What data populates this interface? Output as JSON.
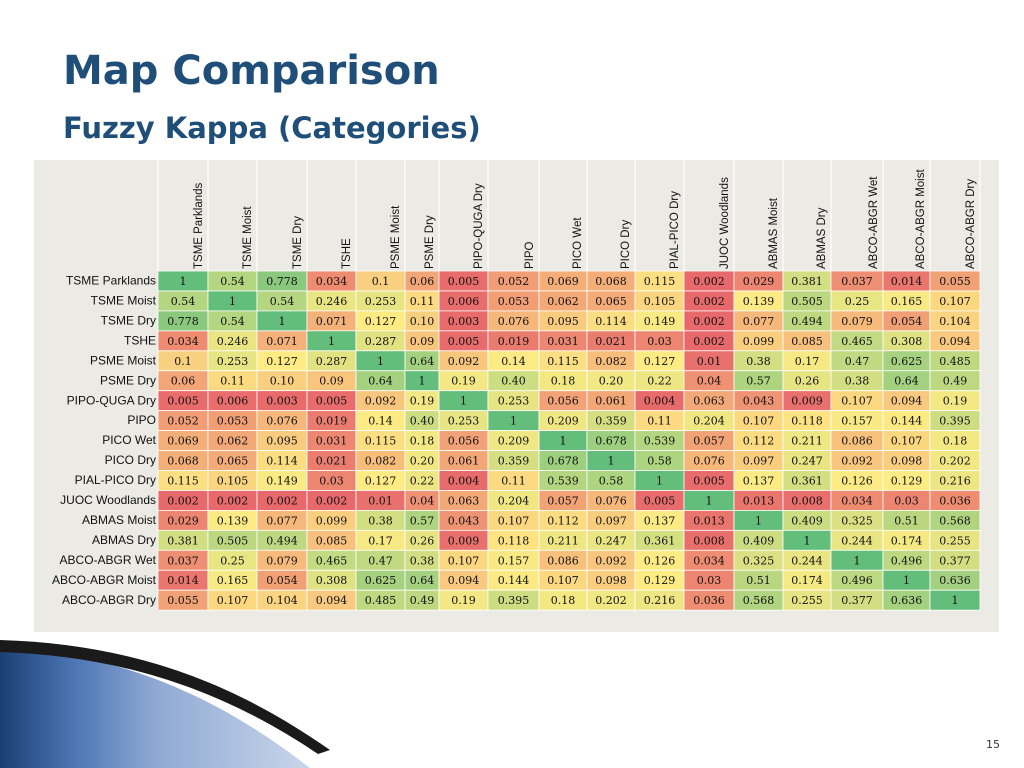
{
  "slide": {
    "title": "Map Comparison",
    "subtitle": "Fuzzy Kappa (Categories)",
    "page_number": "15"
  },
  "colors": {
    "title": "#1F4E79",
    "panel_bg": "#ECEAE4",
    "scale_low": "#E8696B",
    "scale_mid": "#FEEB84",
    "scale_high": "#63BE7B"
  },
  "chart_data": {
    "type": "heatmap",
    "title": "",
    "columns": [
      "TSME Parklands",
      "TSME Moist",
      "TSME Dry",
      "TSHE",
      "PSME Moist",
      "PSME Dry",
      "PIPO-QUGA Dry",
      "PIPO",
      "PICO Wet",
      "PICO Dry",
      "PIAL-PICO Dry",
      "JUOC Woodlands",
      "ABMAS Moist",
      "ABMAS Dry",
      "ABCO-ABGR Wet",
      "ABCO-ABGR Moist",
      "ABCO-ABGR Dry"
    ],
    "rows": [
      "TSME Parklands",
      "TSME Moist",
      "TSME Dry",
      "TSHE",
      "PSME Moist",
      "PSME Dry",
      "PIPO-QUGA Dry",
      "PIPO",
      "PICO Wet",
      "PICO Dry",
      "PIAL-PICO Dry",
      "JUOC Woodlands",
      "ABMAS Moist",
      "ABMAS Dry",
      "ABCO-ABGR Wet",
      "ABCO-ABGR Moist",
      "ABCO-ABGR Dry"
    ],
    "values": [
      [
        "1",
        "0.54",
        "0.778",
        "0.034",
        "0.1",
        "0.06",
        "0.005",
        "0.052",
        "0.069",
        "0.068",
        "0.115",
        "0.002",
        "0.029",
        "0.381",
        "0.037",
        "0.014",
        "0.055"
      ],
      [
        "0.54",
        "1",
        "0.54",
        "0.246",
        "0.253",
        "0.11",
        "0.006",
        "0.053",
        "0.062",
        "0.065",
        "0.105",
        "0.002",
        "0.139",
        "0.505",
        "0.25",
        "0.165",
        "0.107"
      ],
      [
        "0.778",
        "0.54",
        "1",
        "0.071",
        "0.127",
        "0.10",
        "0.003",
        "0.076",
        "0.095",
        "0.114",
        "0.149",
        "0.002",
        "0.077",
        "0.494",
        "0.079",
        "0.054",
        "0.104"
      ],
      [
        "0.034",
        "0.246",
        "0.071",
        "1",
        "0.287",
        "0.09",
        "0.005",
        "0.019",
        "0.031",
        "0.021",
        "0.03",
        "0.002",
        "0.099",
        "0.085",
        "0.465",
        "0.308",
        "0.094"
      ],
      [
        "0.1",
        "0.253",
        "0.127",
        "0.287",
        "1",
        "0.64",
        "0.092",
        "0.14",
        "0.115",
        "0.082",
        "0.127",
        "0.01",
        "0.38",
        "0.17",
        "0.47",
        "0.625",
        "0.485"
      ],
      [
        "0.06",
        "0.11",
        "0.10",
        "0.09",
        "0.64",
        "1",
        "0.19",
        "0.40",
        "0.18",
        "0.20",
        "0.22",
        "0.04",
        "0.57",
        "0.26",
        "0.38",
        "0.64",
        "0.49"
      ],
      [
        "0.005",
        "0.006",
        "0.003",
        "0.005",
        "0.092",
        "0.19",
        "1",
        "0.253",
        "0.056",
        "0.061",
        "0.004",
        "0.063",
        "0.043",
        "0.009",
        "0.107",
        "0.094",
        "0.19"
      ],
      [
        "0.052",
        "0.053",
        "0.076",
        "0.019",
        "0.14",
        "0.40",
        "0.253",
        "1",
        "0.209",
        "0.359",
        "0.11",
        "0.204",
        "0.107",
        "0.118",
        "0.157",
        "0.144",
        "0.395"
      ],
      [
        "0.069",
        "0.062",
        "0.095",
        "0.031",
        "0.115",
        "0.18",
        "0.056",
        "0.209",
        "1",
        "0.678",
        "0.539",
        "0.057",
        "0.112",
        "0.211",
        "0.086",
        "0.107",
        "0.18"
      ],
      [
        "0.068",
        "0.065",
        "0.114",
        "0.021",
        "0.082",
        "0.20",
        "0.061",
        "0.359",
        "0.678",
        "1",
        "0.58",
        "0.076",
        "0.097",
        "0.247",
        "0.092",
        "0.098",
        "0.202"
      ],
      [
        "0.115",
        "0.105",
        "0.149",
        "0.03",
        "0.127",
        "0.22",
        "0.004",
        "0.11",
        "0.539",
        "0.58",
        "1",
        "0.005",
        "0.137",
        "0.361",
        "0.126",
        "0.129",
        "0.216"
      ],
      [
        "0.002",
        "0.002",
        "0.002",
        "0.002",
        "0.01",
        "0.04",
        "0.063",
        "0.204",
        "0.057",
        "0.076",
        "0.005",
        "1",
        "0.013",
        "0.008",
        "0.034",
        "0.03",
        "0.036"
      ],
      [
        "0.029",
        "0.139",
        "0.077",
        "0.099",
        "0.38",
        "0.57",
        "0.043",
        "0.107",
        "0.112",
        "0.097",
        "0.137",
        "0.013",
        "1",
        "0.409",
        "0.325",
        "0.51",
        "0.568"
      ],
      [
        "0.381",
        "0.505",
        "0.494",
        "0.085",
        "0.17",
        "0.26",
        "0.009",
        "0.118",
        "0.211",
        "0.247",
        "0.361",
        "0.008",
        "0.409",
        "1",
        "0.244",
        "0.174",
        "0.255"
      ],
      [
        "0.037",
        "0.25",
        "0.079",
        "0.465",
        "0.47",
        "0.38",
        "0.107",
        "0.157",
        "0.086",
        "0.092",
        "0.126",
        "0.034",
        "0.325",
        "0.244",
        "1",
        "0.496",
        "0.377"
      ],
      [
        "0.014",
        "0.165",
        "0.054",
        "0.308",
        "0.625",
        "0.64",
        "0.094",
        "0.144",
        "0.107",
        "0.098",
        "0.129",
        "0.03",
        "0.51",
        "0.174",
        "0.496",
        "1",
        "0.636"
      ],
      [
        "0.055",
        "0.107",
        "0.104",
        "0.094",
        "0.485",
        "0.49",
        "0.19",
        "0.395",
        "0.18",
        "0.202",
        "0.216",
        "0.036",
        "0.568",
        "0.255",
        "0.377",
        "0.636",
        "1"
      ]
    ]
  }
}
